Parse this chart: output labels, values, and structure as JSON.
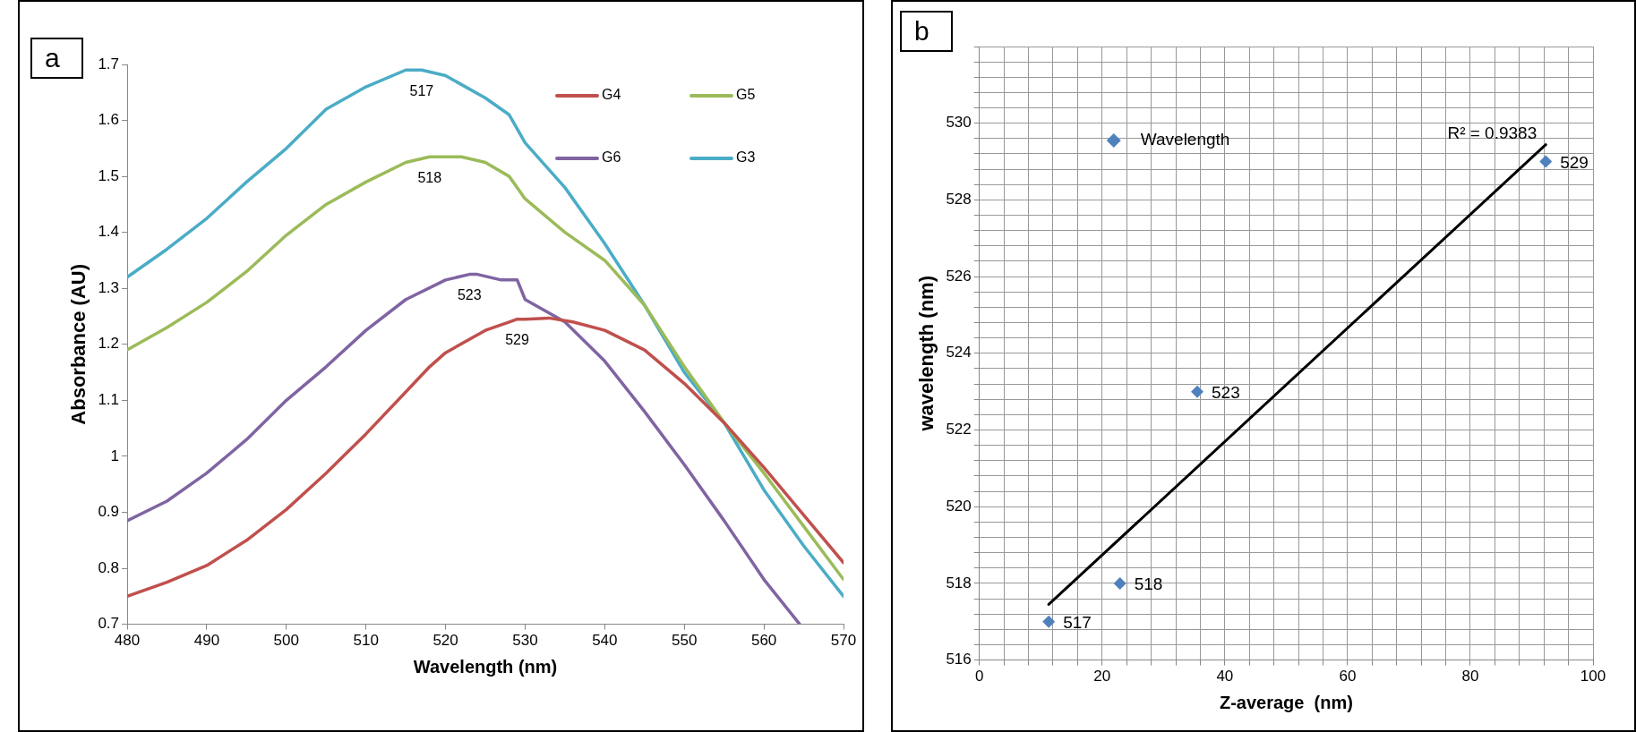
{
  "chart_data": [
    {
      "type": "line",
      "title": "a",
      "xlabel": "Wavelength (nm)",
      "ylabel": "Absorbance (AU)",
      "xlim": [
        480,
        570
      ],
      "xticks": [
        480,
        490,
        500,
        510,
        520,
        530,
        540,
        550,
        560,
        570
      ],
      "ylim": [
        0.7,
        1.7
      ],
      "yticks": [
        0.7,
        0.8,
        0.9,
        1,
        1.1,
        1.2,
        1.3,
        1.4,
        1.5,
        1.6,
        1.7
      ],
      "grid": false,
      "legend": "top right",
      "marker": "none",
      "series": [
        {
          "name": "G4",
          "color": "#c0504d",
          "x": [
            480,
            485,
            490,
            495,
            500,
            505,
            510,
            515,
            518,
            520,
            525,
            528,
            529,
            530,
            533,
            536,
            540,
            545,
            550,
            555,
            560,
            565,
            570
          ],
          "values": [
            0.75,
            0.775,
            0.805,
            0.85,
            0.905,
            0.97,
            1.04,
            1.115,
            1.16,
            1.185,
            1.225,
            1.24,
            1.245,
            1.245,
            1.247,
            1.24,
            1.225,
            1.19,
            1.13,
            1.06,
            0.98,
            0.895,
            0.81
          ]
        },
        {
          "name": "G5",
          "color": "#9bbb59",
          "x": [
            480,
            485,
            490,
            495,
            500,
            505,
            510,
            515,
            518,
            522,
            525,
            528,
            530,
            535,
            540,
            545,
            550,
            555,
            560,
            565,
            570
          ],
          "values": [
            1.19,
            1.23,
            1.275,
            1.33,
            1.395,
            1.45,
            1.49,
            1.525,
            1.535,
            1.535,
            1.525,
            1.5,
            1.46,
            1.4,
            1.35,
            1.27,
            1.16,
            1.06,
            0.97,
            0.875,
            0.78
          ]
        },
        {
          "name": "G6",
          "color": "#8064a2",
          "x": [
            480,
            485,
            490,
            495,
            500,
            505,
            510,
            515,
            520,
            523,
            524,
            527,
            529,
            530,
            535,
            540,
            545,
            550,
            555,
            560,
            564.5
          ],
          "values": [
            0.885,
            0.92,
            0.97,
            1.03,
            1.1,
            1.16,
            1.225,
            1.28,
            1.315,
            1.325,
            1.325,
            1.315,
            1.315,
            1.28,
            1.24,
            1.17,
            1.08,
            0.985,
            0.885,
            0.78,
            0.7
          ]
        },
        {
          "name": "G3",
          "color": "#4bacc6",
          "x": [
            480,
            485,
            490,
            495,
            500,
            505,
            510,
            515,
            517,
            520,
            525,
            528,
            530,
            535,
            540,
            545,
            550,
            555,
            560,
            565,
            570
          ],
          "values": [
            1.32,
            1.37,
            1.425,
            1.49,
            1.55,
            1.62,
            1.66,
            1.69,
            1.69,
            1.68,
            1.64,
            1.61,
            1.56,
            1.48,
            1.38,
            1.27,
            1.15,
            1.06,
            0.94,
            0.84,
            0.75
          ]
        }
      ],
      "annotations": [
        {
          "text": "517",
          "x": 517,
          "y": 1.69
        },
        {
          "text": "518",
          "x": 518,
          "y": 1.535
        },
        {
          "text": "523",
          "x": 523,
          "y": 1.325
        },
        {
          "text": "529",
          "x": 529,
          "y": 1.245
        }
      ]
    },
    {
      "type": "scatter",
      "title": "b",
      "xlabel": "Z-average  (nm)",
      "ylabel": "wavelength (nm)",
      "xlim": [
        0,
        100
      ],
      "xticks": [
        0,
        {
          "value": 4,
          "label": null
        },
        {
          "value": 8,
          "label": null
        },
        {
          "value": 12,
          "label": null
        },
        {
          "value": 16,
          "label": null
        },
        20,
        {
          "value": 24,
          "label": null
        },
        {
          "value": 28,
          "label": null
        },
        {
          "value": 32,
          "label": null
        },
        {
          "value": 36,
          "label": null
        },
        40,
        {
          "value": 44,
          "label": null
        },
        {
          "value": 48,
          "label": null
        },
        {
          "value": 52,
          "label": null
        },
        {
          "value": 56,
          "label": null
        },
        60,
        {
          "value": 64,
          "label": null
        },
        {
          "value": 68,
          "label": null
        },
        {
          "value": 72,
          "label": null
        },
        {
          "value": 76,
          "label": null
        },
        80,
        {
          "value": 84,
          "label": null
        },
        {
          "value": 88,
          "label": null
        },
        {
          "value": 92,
          "label": null
        },
        {
          "value": 96,
          "label": null
        },
        100
      ],
      "ylim": [
        516,
        532
      ],
      "yticks": [
        516,
        {
          "value": 516.4,
          "label": null
        },
        {
          "value": 516.8,
          "label": null
        },
        {
          "value": 517.2,
          "label": null
        },
        {
          "value": 517.6,
          "label": null
        },
        518,
        {
          "value": 518.4,
          "label": null
        },
        {
          "value": 518.8,
          "label": null
        },
        {
          "value": 519.2,
          "label": null
        },
        {
          "value": 519.6,
          "label": null
        },
        520,
        {
          "value": 520.4,
          "label": null
        },
        {
          "value": 520.8,
          "label": null
        },
        {
          "value": 521.2,
          "label": null
        },
        {
          "value": 521.6,
          "label": null
        },
        522,
        {
          "value": 522.4,
          "label": null
        },
        {
          "value": 522.8,
          "label": null
        },
        {
          "value": 523.2,
          "label": null
        },
        {
          "value": 523.6,
          "label": null
        },
        524,
        {
          "value": 524.4,
          "label": null
        },
        {
          "value": 524.8,
          "label": null
        },
        {
          "value": 525.2,
          "label": null
        },
        {
          "value": 525.6,
          "label": null
        },
        526,
        {
          "value": 526.4,
          "label": null
        },
        {
          "value": 526.8,
          "label": null
        },
        {
          "value": 527.2,
          "label": null
        },
        {
          "value": 527.6,
          "label": null
        },
        528,
        {
          "value": 528.4,
          "label": null
        },
        {
          "value": 528.8,
          "label": null
        },
        {
          "value": 529.2,
          "label": null
        },
        {
          "value": 529.6,
          "label": null
        },
        530,
        {
          "value": 530.4,
          "label": null
        },
        {
          "value": 530.8,
          "label": null
        },
        {
          "value": 531.2,
          "label": null
        },
        {
          "value": 531.6,
          "label": null
        },
        {
          "value": 532,
          "label": null
        }
      ],
      "grid": true,
      "legend": "top left",
      "marker": "diamond",
      "x": [
        11.3,
        22.9,
        35.5,
        92.3
      ],
      "series": [
        {
          "name": "Wavelength",
          "color": "#4f81bd",
          "values": [
            517,
            518,
            523,
            529
          ],
          "value_labels": [
            "517",
            "518",
            "523",
            "529"
          ]
        },
        {
          "type": "line",
          "color": "#000000",
          "marker": "none",
          "x": [
            11.3,
            92.3
          ],
          "values": [
            517.45,
            529.44
          ]
        }
      ],
      "annotations": [
        "R² = 0.9383"
      ]
    }
  ]
}
